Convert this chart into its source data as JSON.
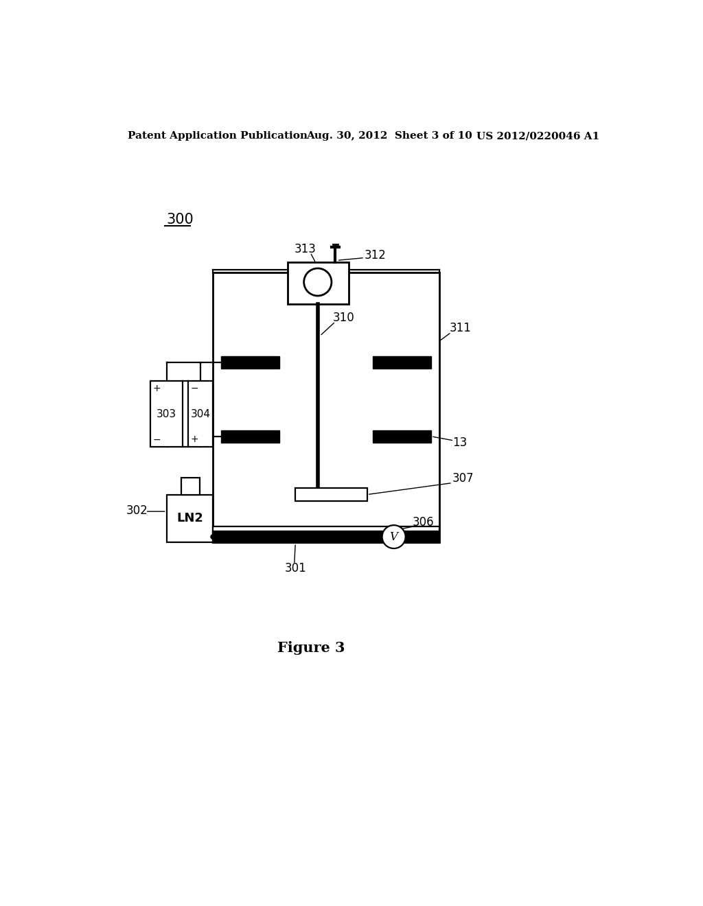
{
  "bg_color": "#ffffff",
  "header_left": "Patent Application Publication",
  "header_center": "Aug. 30, 2012  Sheet 3 of 10",
  "header_right": "US 2012/0220046 A1",
  "fig_label": "Figure 3",
  "diagram_label": "300",
  "label_fontsize": 12,
  "header_fontsize": 11
}
